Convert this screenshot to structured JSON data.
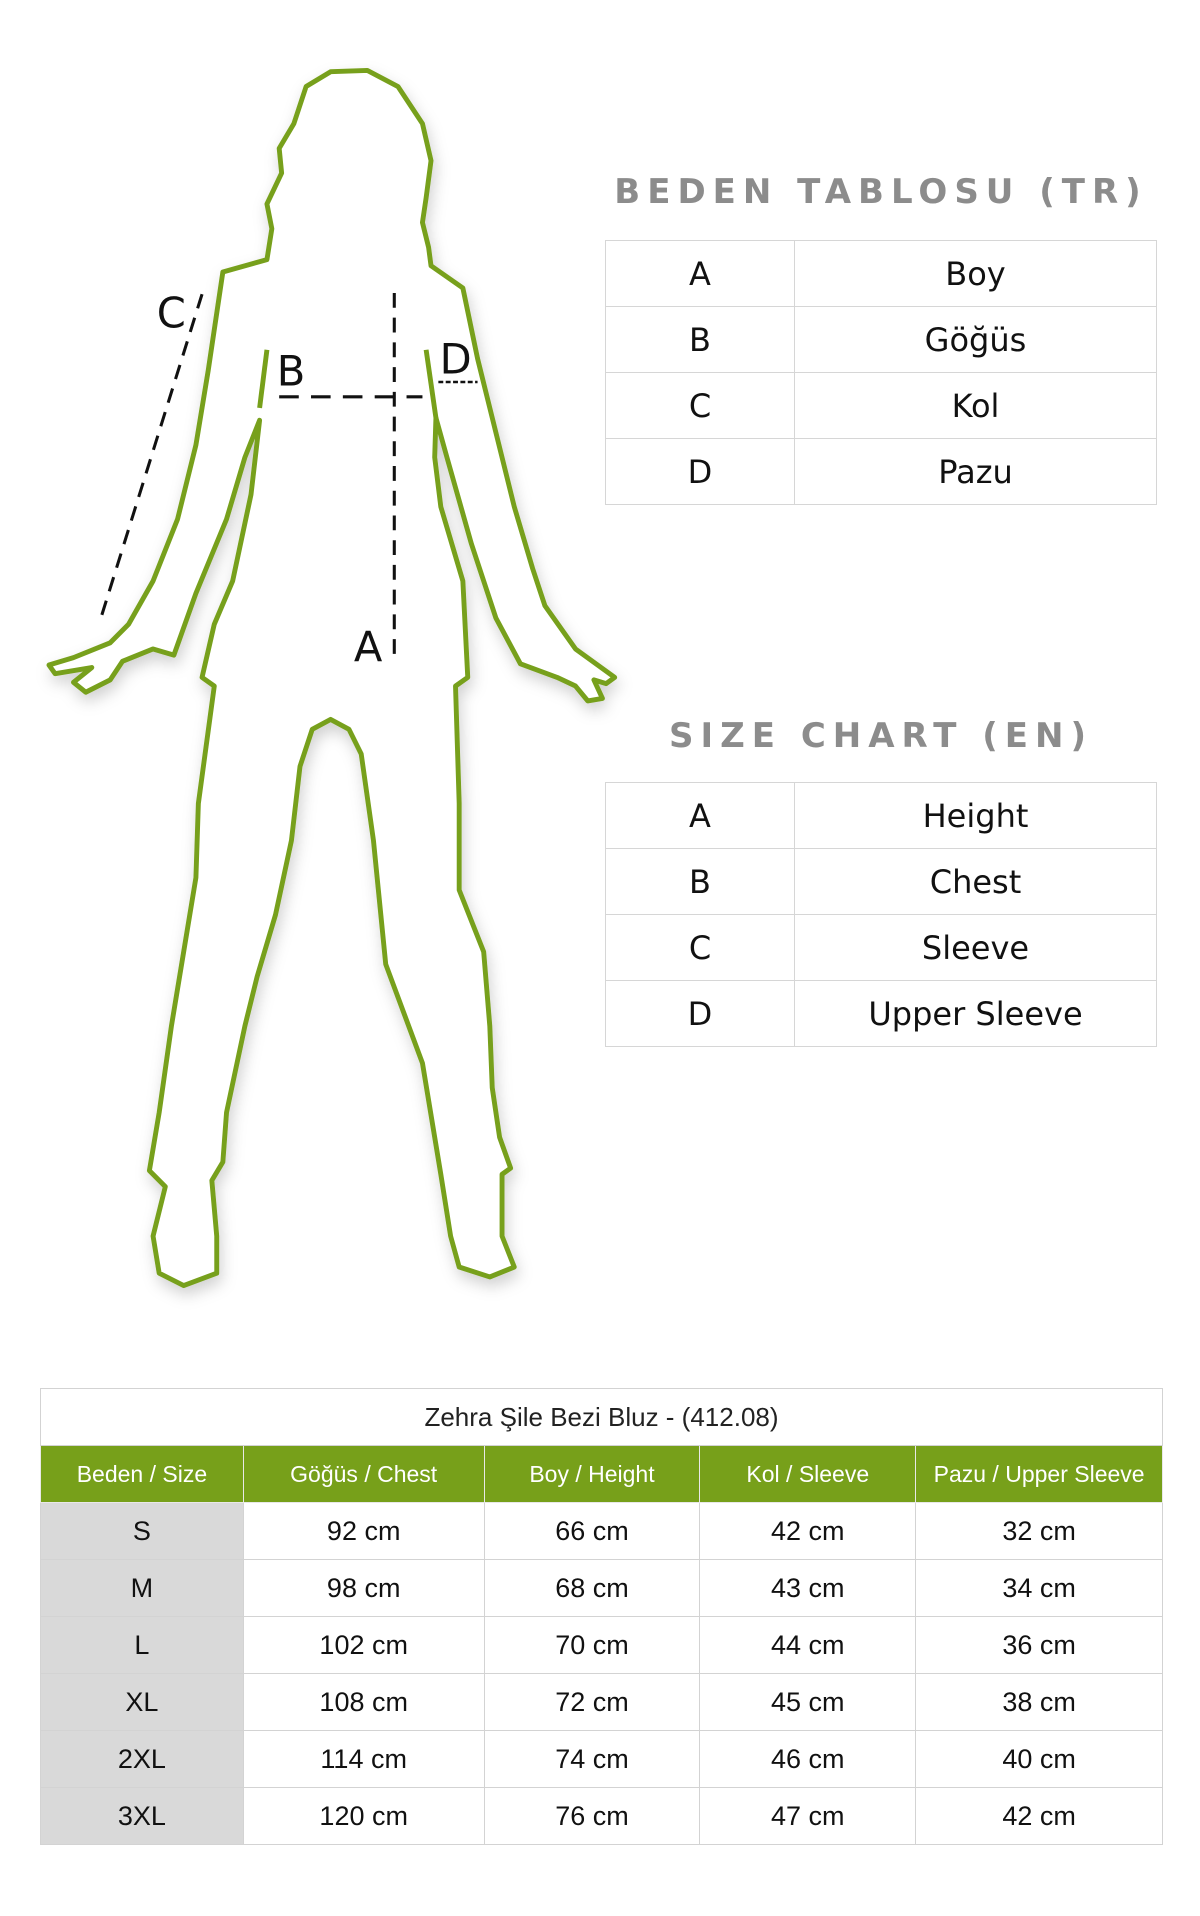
{
  "figure": {
    "labels": {
      "a": "A",
      "b": "B",
      "c": "C",
      "d": "D"
    },
    "outline_color": "#77a01a"
  },
  "tr": {
    "title": "BEDEN TABLOSU (TR)",
    "rows": [
      {
        "key": "A",
        "value": "Boy"
      },
      {
        "key": "B",
        "value": "Göğüs"
      },
      {
        "key": "C",
        "value": "Kol"
      },
      {
        "key": "D",
        "value": "Pazu"
      }
    ]
  },
  "en": {
    "title": "SIZE CHART (EN)",
    "rows": [
      {
        "key": "A",
        "value": "Height"
      },
      {
        "key": "B",
        "value": "Chest"
      },
      {
        "key": "C",
        "value": "Sleeve"
      },
      {
        "key": "D",
        "value": "Upper Sleeve"
      }
    ]
  },
  "size_table": {
    "caption": "Zehra Şile Bezi Bluz - (412.08)",
    "header_color": "#77a01a",
    "headers": [
      "Beden / Size",
      "Göğüs / Chest",
      "Boy / Height",
      "Kol / Sleeve",
      "Pazu / Upper Sleeve"
    ],
    "rows": [
      [
        "S",
        "92 cm",
        "66 cm",
        "42 cm",
        "32 cm"
      ],
      [
        "M",
        "98 cm",
        "68 cm",
        "43 cm",
        "34 cm"
      ],
      [
        "L",
        "102 cm",
        "70 cm",
        "44 cm",
        "36 cm"
      ],
      [
        "XL",
        "108 cm",
        "72 cm",
        "45 cm",
        "38 cm"
      ],
      [
        "2XL",
        "114 cm",
        "74 cm",
        "46 cm",
        "40 cm"
      ],
      [
        "3XL",
        "120 cm",
        "76 cm",
        "47 cm",
        "42 cm"
      ]
    ]
  }
}
